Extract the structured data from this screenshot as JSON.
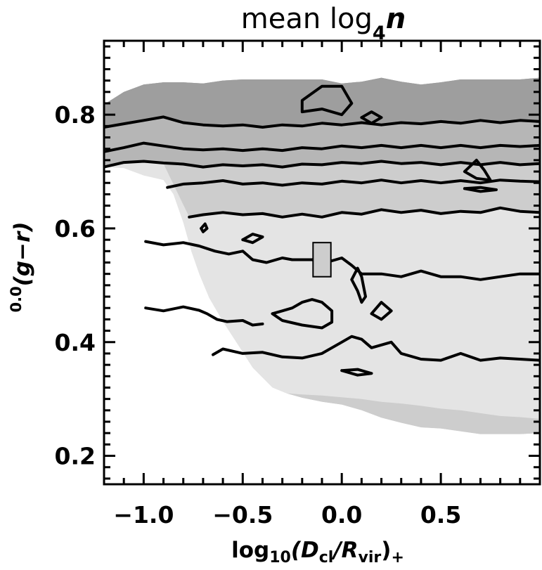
{
  "chart_data": {
    "type": "contour",
    "title_parts": {
      "main": "mean log",
      "sub": "4",
      "var": "n"
    },
    "xlabel_parts": {
      "pre": "log",
      "sub": "10",
      "open": "(D",
      "sub2": "cl",
      "slash": "/R",
      "sub3": "vir",
      "close": ")",
      "tail": "+"
    },
    "ylabel_parts": {
      "sup": "0.0",
      "main": "(g−r)"
    },
    "x_tick_labels": [
      "−1.0",
      "−0.5",
      "0.0",
      "0.5"
    ],
    "x_ticks": [
      -1.0,
      -0.5,
      0.0,
      0.5
    ],
    "y_tick_labels": [
      "0.2",
      "0.4",
      "0.6",
      "0.8"
    ],
    "y_ticks": [
      0.2,
      0.4,
      0.6,
      0.8
    ],
    "xlim": [
      -1.2,
      1.0
    ],
    "ylim": [
      0.15,
      0.93
    ],
    "grid": false,
    "legend": "none",
    "colors": {
      "level1": "#e4e4e4",
      "level2": "#cdcdcd",
      "level3": "#b6b6b6",
      "level4": "#9e9e9e",
      "line": "#000000"
    },
    "coverage_boundary": [
      [
        -1.2,
        0.708
      ],
      [
        -1.1,
        0.706
      ],
      [
        -1.0,
        0.693
      ],
      [
        -0.9,
        0.685
      ],
      [
        -0.85,
        0.66
      ],
      [
        -0.8,
        0.61
      ],
      [
        -0.76,
        0.56
      ],
      [
        -0.72,
        0.52
      ],
      [
        -0.67,
        0.478
      ],
      [
        -0.6,
        0.436
      ],
      [
        -0.52,
        0.393
      ],
      [
        -0.45,
        0.355
      ],
      [
        -0.35,
        0.32
      ],
      [
        -0.28,
        0.31
      ],
      [
        -0.2,
        0.302
      ],
      [
        -0.1,
        0.295
      ],
      [
        0.0,
        0.29
      ],
      [
        0.1,
        0.28
      ],
      [
        0.2,
        0.267
      ],
      [
        0.3,
        0.258
      ],
      [
        0.4,
        0.25
      ],
      [
        0.5,
        0.248
      ],
      [
        0.6,
        0.243
      ],
      [
        0.7,
        0.238
      ],
      [
        0.8,
        0.238
      ],
      [
        0.9,
        0.238
      ],
      [
        1.0,
        0.24
      ],
      [
        1.0,
        0.865
      ],
      [
        0.9,
        0.862
      ],
      [
        0.8,
        0.862
      ],
      [
        0.7,
        0.862
      ],
      [
        0.6,
        0.862
      ],
      [
        0.5,
        0.857
      ],
      [
        0.4,
        0.853
      ],
      [
        0.3,
        0.858
      ],
      [
        0.2,
        0.865
      ],
      [
        0.1,
        0.858
      ],
      [
        0.0,
        0.855
      ],
      [
        -0.1,
        0.862
      ],
      [
        -0.2,
        0.862
      ],
      [
        -0.3,
        0.862
      ],
      [
        -0.4,
        0.862
      ],
      [
        -0.5,
        0.862
      ],
      [
        -0.6,
        0.86
      ],
      [
        -0.7,
        0.855
      ],
      [
        -0.8,
        0.857
      ],
      [
        -0.9,
        0.857
      ],
      [
        -1.0,
        0.853
      ],
      [
        -1.1,
        0.84
      ],
      [
        -1.2,
        0.818
      ]
    ],
    "region_level2": [
      [
        -0.28,
        0.31
      ],
      [
        -0.2,
        0.302
      ],
      [
        -0.1,
        0.295
      ],
      [
        0.0,
        0.29
      ],
      [
        0.1,
        0.28
      ],
      [
        0.2,
        0.267
      ],
      [
        0.3,
        0.258
      ],
      [
        0.4,
        0.25
      ],
      [
        0.5,
        0.248
      ],
      [
        0.6,
        0.243
      ],
      [
        0.7,
        0.238
      ],
      [
        0.8,
        0.238
      ],
      [
        0.9,
        0.238
      ],
      [
        1.0,
        0.24
      ],
      [
        1.0,
        0.265
      ],
      [
        0.9,
        0.268
      ],
      [
        0.8,
        0.27
      ],
      [
        0.7,
        0.275
      ],
      [
        0.6,
        0.28
      ],
      [
        0.5,
        0.283
      ],
      [
        0.4,
        0.288
      ],
      [
        0.3,
        0.292
      ],
      [
        0.2,
        0.295
      ],
      [
        0.1,
        0.3
      ],
      [
        0.0,
        0.303
      ],
      [
        -0.1,
        0.306
      ],
      [
        -0.2,
        0.308
      ]
    ],
    "contours": [
      {
        "name": "c1",
        "points": [
          [
            -0.77,
            0.62
          ],
          [
            -0.7,
            0.624
          ],
          [
            -0.6,
            0.628
          ],
          [
            -0.5,
            0.624
          ],
          [
            -0.4,
            0.626
          ],
          [
            -0.3,
            0.62
          ],
          [
            -0.2,
            0.625
          ],
          [
            -0.1,
            0.62
          ],
          [
            0.0,
            0.628
          ],
          [
            0.1,
            0.625
          ],
          [
            0.2,
            0.633
          ],
          [
            0.3,
            0.628
          ],
          [
            0.4,
            0.632
          ],
          [
            0.5,
            0.626
          ],
          [
            0.6,
            0.63
          ],
          [
            0.7,
            0.628
          ],
          [
            0.8,
            0.636
          ],
          [
            0.9,
            0.63
          ],
          [
            1.0,
            0.628
          ]
        ]
      },
      {
        "name": "c2",
        "points": [
          [
            -0.88,
            0.672
          ],
          [
            -0.8,
            0.678
          ],
          [
            -0.7,
            0.68
          ],
          [
            -0.6,
            0.684
          ],
          [
            -0.5,
            0.678
          ],
          [
            -0.4,
            0.68
          ],
          [
            -0.3,
            0.676
          ],
          [
            -0.2,
            0.68
          ],
          [
            -0.1,
            0.678
          ],
          [
            0.0,
            0.683
          ],
          [
            0.1,
            0.68
          ],
          [
            0.2,
            0.685
          ],
          [
            0.3,
            0.68
          ],
          [
            0.4,
            0.684
          ],
          [
            0.5,
            0.68
          ],
          [
            0.6,
            0.684
          ],
          [
            0.7,
            0.68
          ],
          [
            0.8,
            0.685
          ],
          [
            0.9,
            0.683
          ],
          [
            1.0,
            0.682
          ]
        ]
      },
      {
        "name": "c3",
        "points": [
          [
            -1.2,
            0.708
          ],
          [
            -1.1,
            0.716
          ],
          [
            -1.0,
            0.718
          ],
          [
            -0.9,
            0.715
          ],
          [
            -0.8,
            0.713
          ],
          [
            -0.7,
            0.708
          ],
          [
            -0.6,
            0.712
          ],
          [
            -0.5,
            0.71
          ],
          [
            -0.4,
            0.712
          ],
          [
            -0.3,
            0.708
          ],
          [
            -0.2,
            0.713
          ],
          [
            -0.1,
            0.712
          ],
          [
            0.0,
            0.716
          ],
          [
            0.1,
            0.714
          ],
          [
            0.2,
            0.718
          ],
          [
            0.3,
            0.714
          ],
          [
            0.4,
            0.716
          ],
          [
            0.5,
            0.712
          ],
          [
            0.6,
            0.716
          ],
          [
            0.7,
            0.712
          ],
          [
            0.8,
            0.716
          ],
          [
            0.9,
            0.712
          ],
          [
            1.0,
            0.714
          ]
        ]
      },
      {
        "name": "c4",
        "points": [
          [
            -1.2,
            0.735
          ],
          [
            -1.1,
            0.742
          ],
          [
            -1.0,
            0.75
          ],
          [
            -0.9,
            0.745
          ],
          [
            -0.8,
            0.74
          ],
          [
            -0.7,
            0.738
          ],
          [
            -0.6,
            0.74
          ],
          [
            -0.5,
            0.737
          ],
          [
            -0.4,
            0.74
          ],
          [
            -0.3,
            0.737
          ],
          [
            -0.2,
            0.742
          ],
          [
            -0.1,
            0.74
          ],
          [
            0.0,
            0.745
          ],
          [
            0.1,
            0.742
          ],
          [
            0.2,
            0.746
          ],
          [
            0.3,
            0.742
          ],
          [
            0.4,
            0.746
          ],
          [
            0.5,
            0.742
          ],
          [
            0.6,
            0.746
          ],
          [
            0.7,
            0.742
          ],
          [
            0.8,
            0.746
          ],
          [
            0.9,
            0.744
          ],
          [
            1.0,
            0.746
          ]
        ]
      },
      {
        "name": "c5",
        "points": [
          [
            -1.2,
            0.778
          ],
          [
            -1.1,
            0.784
          ],
          [
            -1.0,
            0.79
          ],
          [
            -0.9,
            0.796
          ],
          [
            -0.8,
            0.786
          ],
          [
            -0.7,
            0.782
          ],
          [
            -0.6,
            0.78
          ],
          [
            -0.5,
            0.782
          ],
          [
            -0.4,
            0.778
          ],
          [
            -0.3,
            0.782
          ],
          [
            -0.2,
            0.78
          ],
          [
            -0.1,
            0.785
          ],
          [
            0.0,
            0.782
          ],
          [
            0.1,
            0.786
          ],
          [
            0.2,
            0.782
          ],
          [
            0.3,
            0.786
          ],
          [
            0.4,
            0.784
          ],
          [
            0.5,
            0.788
          ],
          [
            0.6,
            0.785
          ],
          [
            0.7,
            0.79
          ],
          [
            0.8,
            0.786
          ],
          [
            0.9,
            0.79
          ],
          [
            1.0,
            0.788
          ]
        ]
      },
      {
        "name": "c6",
        "points": [
          [
            -0.99,
            0.46
          ],
          [
            -0.9,
            0.455
          ],
          [
            -0.8,
            0.462
          ],
          [
            -0.72,
            0.456
          ],
          [
            -0.68,
            0.45
          ],
          [
            -0.63,
            0.44
          ],
          [
            -0.58,
            0.436
          ],
          [
            -0.5,
            0.438
          ],
          [
            -0.45,
            0.43
          ],
          [
            -0.4,
            0.432
          ]
        ]
      },
      {
        "name": "c7",
        "points": [
          [
            -0.99,
            0.577
          ],
          [
            -0.9,
            0.571
          ],
          [
            -0.8,
            0.575
          ],
          [
            -0.72,
            0.569
          ],
          [
            -0.64,
            0.56
          ],
          [
            -0.57,
            0.555
          ],
          [
            -0.5,
            0.56
          ],
          [
            -0.45,
            0.545
          ],
          [
            -0.38,
            0.54
          ],
          [
            -0.3,
            0.548
          ],
          [
            -0.25,
            0.545
          ]
        ]
      },
      {
        "name": "c8",
        "points": [
          [
            -0.25,
            0.545
          ],
          [
            -0.15,
            0.545
          ],
          [
            -0.08,
            0.54
          ],
          [
            0.0,
            0.548
          ],
          [
            0.05,
            0.535
          ],
          [
            0.1,
            0.52
          ],
          [
            0.2,
            0.52
          ],
          [
            0.3,
            0.515
          ],
          [
            0.4,
            0.525
          ],
          [
            0.5,
            0.515
          ],
          [
            0.6,
            0.515
          ],
          [
            0.7,
            0.51
          ],
          [
            0.8,
            0.515
          ],
          [
            0.9,
            0.52
          ],
          [
            1.0,
            0.52
          ]
        ]
      },
      {
        "name": "c9",
        "points": [
          [
            -0.65,
            0.378
          ],
          [
            -0.6,
            0.388
          ],
          [
            -0.5,
            0.38
          ],
          [
            -0.4,
            0.382
          ],
          [
            -0.3,
            0.374
          ],
          [
            -0.2,
            0.372
          ],
          [
            -0.1,
            0.38
          ],
          [
            0.0,
            0.4
          ],
          [
            0.05,
            0.41
          ],
          [
            0.1,
            0.405
          ],
          [
            0.15,
            0.39
          ],
          [
            0.25,
            0.4
          ],
          [
            0.3,
            0.38
          ],
          [
            0.4,
            0.37
          ],
          [
            0.5,
            0.368
          ],
          [
            0.6,
            0.38
          ],
          [
            0.7,
            0.368
          ],
          [
            0.8,
            0.372
          ],
          [
            0.9,
            0.37
          ],
          [
            1.0,
            0.368
          ]
        ]
      },
      {
        "name": "c10",
        "points": [
          [
            -0.35,
            0.45
          ],
          [
            -0.3,
            0.455
          ],
          [
            -0.25,
            0.46
          ],
          [
            -0.2,
            0.47
          ],
          [
            -0.15,
            0.475
          ],
          [
            -0.1,
            0.47
          ],
          [
            -0.05,
            0.455
          ],
          [
            -0.05,
            0.435
          ],
          [
            -0.1,
            0.425
          ],
          [
            -0.2,
            0.43
          ],
          [
            -0.3,
            0.438
          ],
          [
            -0.35,
            0.45
          ]
        ]
      },
      {
        "name": "c11",
        "points": [
          [
            -0.5,
            0.58
          ],
          [
            -0.45,
            0.59
          ],
          [
            -0.4,
            0.585
          ],
          [
            -0.45,
            0.575
          ],
          [
            -0.5,
            0.58
          ]
        ]
      },
      {
        "name": "c12",
        "points": [
          [
            0.05,
            0.51
          ],
          [
            0.08,
            0.53
          ],
          [
            0.1,
            0.515
          ],
          [
            0.12,
            0.48
          ],
          [
            0.1,
            0.47
          ],
          [
            0.08,
            0.49
          ],
          [
            0.05,
            0.51
          ]
        ]
      },
      {
        "name": "c13",
        "points": [
          [
            0.15,
            0.45
          ],
          [
            0.2,
            0.47
          ],
          [
            0.25,
            0.455
          ],
          [
            0.2,
            0.44
          ],
          [
            0.15,
            0.45
          ]
        ]
      },
      {
        "name": "c14",
        "points": [
          [
            0.0,
            0.35
          ],
          [
            0.08,
            0.352
          ],
          [
            0.15,
            0.345
          ],
          [
            0.08,
            0.342
          ],
          [
            0.0,
            0.35
          ]
        ]
      },
      {
        "name": "c15",
        "points": [
          [
            -0.2,
            0.805
          ],
          [
            -0.1,
            0.81
          ],
          [
            0.0,
            0.8
          ],
          [
            0.05,
            0.82
          ],
          [
            0.0,
            0.85
          ],
          [
            -0.1,
            0.85
          ],
          [
            -0.2,
            0.825
          ],
          [
            -0.2,
            0.805
          ]
        ]
      },
      {
        "name": "c16",
        "points": [
          [
            0.1,
            0.795
          ],
          [
            0.15,
            0.805
          ],
          [
            0.2,
            0.795
          ],
          [
            0.15,
            0.785
          ],
          [
            0.1,
            0.795
          ]
        ]
      },
      {
        "name": "c17",
        "points": [
          [
            0.62,
            0.7
          ],
          [
            0.68,
            0.72
          ],
          [
            0.72,
            0.702
          ],
          [
            0.75,
            0.685
          ],
          [
            0.68,
            0.688
          ],
          [
            0.62,
            0.7
          ]
        ]
      },
      {
        "name": "c18",
        "points": [
          [
            0.62,
            0.67
          ],
          [
            0.7,
            0.672
          ],
          [
            0.78,
            0.668
          ],
          [
            0.7,
            0.665
          ],
          [
            0.62,
            0.67
          ]
        ]
      },
      {
        "name": "c19",
        "points": [
          [
            -0.71,
            0.6
          ],
          [
            -0.69,
            0.608
          ],
          [
            -0.68,
            0.6
          ],
          [
            -0.7,
            0.594
          ],
          [
            -0.71,
            0.6
          ]
        ]
      }
    ],
    "marker_square": {
      "x": -0.1,
      "y": 0.545,
      "w": 0.09,
      "h": 0.06
    }
  }
}
